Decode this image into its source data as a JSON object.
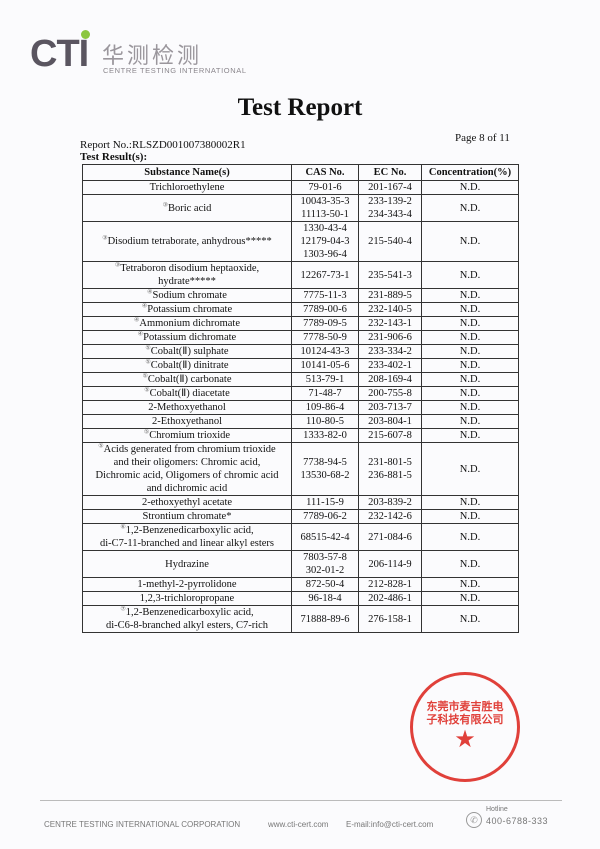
{
  "logo": {
    "brand": "CTI",
    "chinese": "华测检测",
    "english": "CENTRE TESTING INTERNATIONAL",
    "accent": "#8cc63f"
  },
  "title": "Test Report",
  "report_no": "Report No.:RLSZD001007380002R1",
  "page": "Page 8 of 11",
  "results_label": "Test Result(s):",
  "table": {
    "headers": [
      "Substance Name(s)",
      "CAS No.",
      "EC No.",
      "Concentration(%)"
    ],
    "rows": [
      {
        "marker": "",
        "name": "Trichloroethylene",
        "cas": "79-01-6",
        "ec": "201-167-4",
        "conc": "N.D."
      },
      {
        "marker": "③",
        "name": "Boric acid",
        "cas": "10043-35-3\n11113-50-1",
        "ec": "233-139-2\n234-343-4",
        "conc": "N.D."
      },
      {
        "marker": "③",
        "name": "Disodium tetraborate, anhydrous*****",
        "cas": "1330-43-4\n12179-04-3\n1303-96-4",
        "ec": "215-540-4",
        "conc": "N.D."
      },
      {
        "marker": "③",
        "name": "Tetraboron disodium heptaoxide,\nhydrate*****",
        "cas": "12267-73-1",
        "ec": "235-541-3",
        "conc": "N.D."
      },
      {
        "marker": "④",
        "name": "Sodium chromate",
        "cas": "7775-11-3",
        "ec": "231-889-5",
        "conc": "N.D."
      },
      {
        "marker": "④",
        "name": "Potassium chromate",
        "cas": "7789-00-6",
        "ec": "232-140-5",
        "conc": "N.D."
      },
      {
        "marker": "④",
        "name": "Ammonium dichromate",
        "cas": "7789-09-5",
        "ec": "232-143-1",
        "conc": "N.D."
      },
      {
        "marker": "④",
        "name": "Potassium dichromate",
        "cas": "7778-50-9",
        "ec": "231-906-6",
        "conc": "N.D."
      },
      {
        "marker": "⑤",
        "name": "Cobalt(Ⅱ) sulphate",
        "cas": "10124-43-3",
        "ec": "233-334-2",
        "conc": "N.D."
      },
      {
        "marker": "⑤",
        "name": "Cobalt(Ⅱ) dinitrate",
        "cas": "10141-05-6",
        "ec": "233-402-1",
        "conc": "N.D."
      },
      {
        "marker": "⑤",
        "name": "Cobalt(Ⅱ) carbonate",
        "cas": "513-79-1",
        "ec": "208-169-4",
        "conc": "N.D."
      },
      {
        "marker": "⑤",
        "name": "Cobalt(Ⅱ) diacetate",
        "cas": "71-48-7",
        "ec": "200-755-8",
        "conc": "N.D."
      },
      {
        "marker": "",
        "name": "2-Methoxyethanol",
        "cas": "109-86-4",
        "ec": "203-713-7",
        "conc": "N.D."
      },
      {
        "marker": "",
        "name": "2-Ethoxyethanol",
        "cas": "110-80-5",
        "ec": "203-804-1",
        "conc": "N.D."
      },
      {
        "marker": "⑤",
        "name": "Chromium trioxide",
        "cas": "1333-82-0",
        "ec": "215-607-8",
        "conc": "N.D."
      },
      {
        "marker": "⑤",
        "name": "Acids generated from chromium trioxide\nand their oligomers: Chromic acid,\nDichromic acid, Oligomers of chromic acid\nand dichromic acid",
        "cas": "7738-94-5\n13530-68-2",
        "ec": "231-801-5\n236-881-5",
        "conc": "N.D."
      },
      {
        "marker": "",
        "name": "2-ethoxyethyl acetate",
        "cas": "111-15-9",
        "ec": "203-839-2",
        "conc": "N.D."
      },
      {
        "marker": "",
        "name": "Strontium chromate*",
        "cas": "7789-06-2",
        "ec": "232-142-6",
        "conc": "N.D."
      },
      {
        "marker": "⑥",
        "name": "1,2-Benzenedicarboxylic acid,\ndi-C7-11-branched and linear alkyl esters",
        "cas": "68515-42-4",
        "ec": "271-084-6",
        "conc": "N.D."
      },
      {
        "marker": "",
        "name": "Hydrazine",
        "cas": "7803-57-8\n302-01-2",
        "ec": "206-114-9",
        "conc": "N.D."
      },
      {
        "marker": "",
        "name": "1-methyl-2-pyrrolidone",
        "cas": "872-50-4",
        "ec": "212-828-1",
        "conc": "N.D."
      },
      {
        "marker": "",
        "name": "1,2,3-trichloropropane",
        "cas": "96-18-4",
        "ec": "202-486-1",
        "conc": "N.D."
      },
      {
        "marker": "⑦",
        "name": "1,2-Benzenedicarboxylic acid,\ndi-C6-8-branched alkyl esters, C7-rich",
        "cas": "71888-89-6",
        "ec": "276-158-1",
        "conc": "N.D."
      }
    ]
  },
  "stamp": {
    "text": "东莞市麦吉胜电子科技有限公司",
    "color": "#e0403a"
  },
  "footer": {
    "company": "CENTRE TESTING INTERNATIONAL CORPORATION",
    "website": "www.cti-cert.com",
    "email": "E-mail:info@cti-cert.com",
    "hotline_label": "Hotline",
    "hotline": "400-6788-333"
  }
}
